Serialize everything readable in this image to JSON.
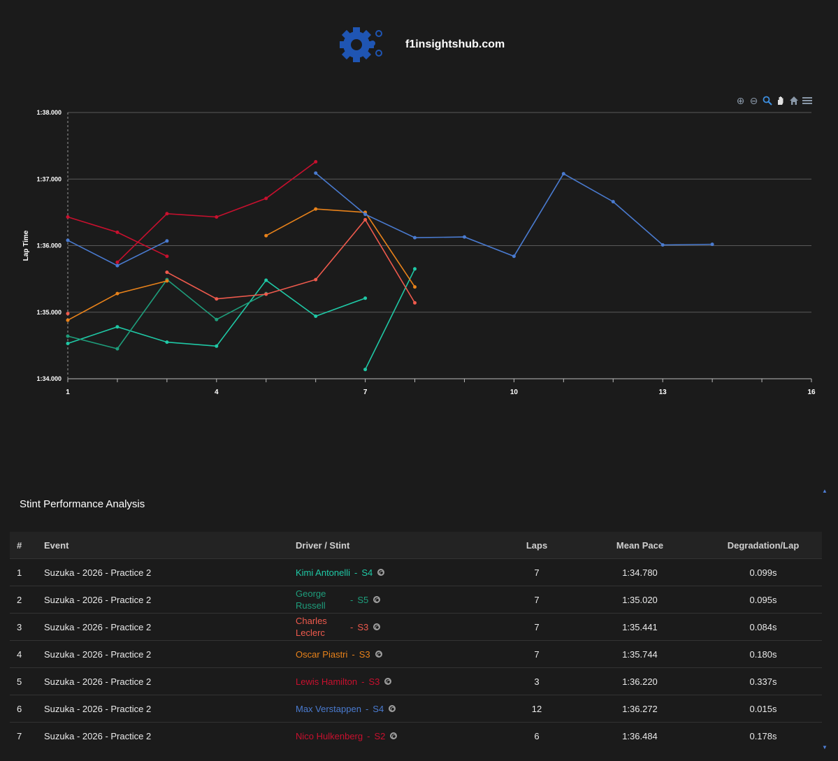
{
  "site": {
    "name": "f1insightshub.com",
    "logo_icon": "gear-icon",
    "logo_color": "#1f55b3"
  },
  "toolbar": {
    "items": [
      "zoom-in-icon",
      "zoom-out-icon",
      "magnifier-icon",
      "pan-hand-icon",
      "home-icon",
      "menu-icon"
    ]
  },
  "chart_data": {
    "type": "line",
    "title": "",
    "xlabel": "",
    "ylabel": "Lap Time",
    "xlim": [
      1,
      16
    ],
    "ylim": [
      94,
      98
    ],
    "x_ticks": [
      "1",
      "4",
      "7",
      "10",
      "13",
      "16"
    ],
    "y_ticks": [
      "1:34.000",
      "1:35.000",
      "1:36.000",
      "1:37.000",
      "1:38.000"
    ],
    "grid": true,
    "series": [
      {
        "color": "#1fc9a6",
        "points": [
          [
            1,
            94.53
          ],
          [
            2,
            94.78
          ],
          [
            3,
            94.55
          ],
          [
            4,
            94.49
          ],
          [
            5,
            95.48
          ],
          [
            6,
            94.94
          ],
          [
            7,
            95.21
          ]
        ]
      },
      {
        "color": "#1fc9a6",
        "points": [
          [
            7,
            94.14
          ],
          [
            8,
            95.65
          ]
        ]
      },
      {
        "color": "#1e9e7c",
        "points": [
          [
            1,
            94.64
          ],
          [
            2,
            94.45
          ],
          [
            3,
            95.49
          ],
          [
            4,
            94.89
          ],
          [
            5,
            95.28
          ]
        ]
      },
      {
        "color": "#ef5a4d",
        "points": [
          [
            1,
            94.98
          ]
        ]
      },
      {
        "color": "#ef5a4d",
        "points": [
          [
            3,
            95.6
          ],
          [
            4,
            95.2
          ],
          [
            5,
            95.27
          ],
          [
            6,
            95.49
          ],
          [
            7,
            96.39
          ],
          [
            8,
            95.14
          ]
        ]
      },
      {
        "color": "#e8821a",
        "points": [
          [
            1,
            94.88
          ],
          [
            2,
            95.28
          ],
          [
            3,
            95.47
          ]
        ]
      },
      {
        "color": "#e8821a",
        "points": [
          [
            5,
            96.15
          ],
          [
            6,
            96.55
          ],
          [
            7,
            96.5
          ],
          [
            8,
            95.38
          ]
        ]
      },
      {
        "color": "#c8102e",
        "points": [
          [
            1,
            96.43
          ],
          [
            2,
            96.2
          ],
          [
            3,
            95.84
          ]
        ]
      },
      {
        "color": "#c8102e",
        "points": [
          [
            2,
            95.75
          ],
          [
            3,
            96.48
          ],
          [
            4,
            96.43
          ],
          [
            5,
            96.71
          ],
          [
            6,
            97.26
          ]
        ]
      },
      {
        "color": "#4a7bd0",
        "points": [
          [
            1,
            96.08
          ],
          [
            2,
            95.7
          ],
          [
            3,
            96.07
          ]
        ]
      },
      {
        "color": "#4a7bd0",
        "points": [
          [
            6,
            97.09
          ],
          [
            7,
            96.47
          ],
          [
            8,
            96.12
          ],
          [
            9,
            96.13
          ],
          [
            10,
            95.84
          ],
          [
            11,
            97.08
          ],
          [
            12,
            96.66
          ],
          [
            13,
            96.01
          ],
          [
            14,
            96.02
          ]
        ]
      }
    ]
  },
  "section": {
    "title": "Stint Performance Analysis"
  },
  "table": {
    "headers": [
      "#",
      "Event",
      "Driver / Stint",
      "Laps",
      "Mean Pace",
      "Degradation/Lap"
    ],
    "rows": [
      {
        "idx": "1",
        "event": "Suzuka - 2026 - Practice 2",
        "driver": "Kimi Antonelli",
        "stint": "S4",
        "color": "#1fc9a6",
        "laps": "7",
        "pace": "1:34.780",
        "deg": "0.099s"
      },
      {
        "idx": "2",
        "event": "Suzuka - 2026 - Practice 2",
        "driver": "George Russell",
        "stint": "S5",
        "color": "#1e9e7c",
        "laps": "7",
        "pace": "1:35.020",
        "deg": "0.095s"
      },
      {
        "idx": "3",
        "event": "Suzuka - 2026 - Practice 2",
        "driver": "Charles Leclerc",
        "stint": "S3",
        "color": "#ef5a4d",
        "laps": "7",
        "pace": "1:35.441",
        "deg": "0.084s"
      },
      {
        "idx": "4",
        "event": "Suzuka - 2026 - Practice 2",
        "driver": "Oscar Piastri",
        "stint": "S3",
        "color": "#e8821a",
        "laps": "7",
        "pace": "1:35.744",
        "deg": "0.180s"
      },
      {
        "idx": "5",
        "event": "Suzuka - 2026 - Practice 2",
        "driver": "Lewis Hamilton",
        "stint": "S3",
        "color": "#c8102e",
        "laps": "3",
        "pace": "1:36.220",
        "deg": "0.337s"
      },
      {
        "idx": "6",
        "event": "Suzuka - 2026 - Practice 2",
        "driver": "Max Verstappen",
        "stint": "S4",
        "color": "#4a7bd0",
        "laps": "12",
        "pace": "1:36.272",
        "deg": "0.015s"
      },
      {
        "idx": "7",
        "event": "Suzuka - 2026 - Practice 2",
        "driver": "Nico Hulkenberg",
        "stint": "S2",
        "color": "#c8102e",
        "laps": "6",
        "pace": "1:36.484",
        "deg": "0.178s"
      }
    ]
  }
}
